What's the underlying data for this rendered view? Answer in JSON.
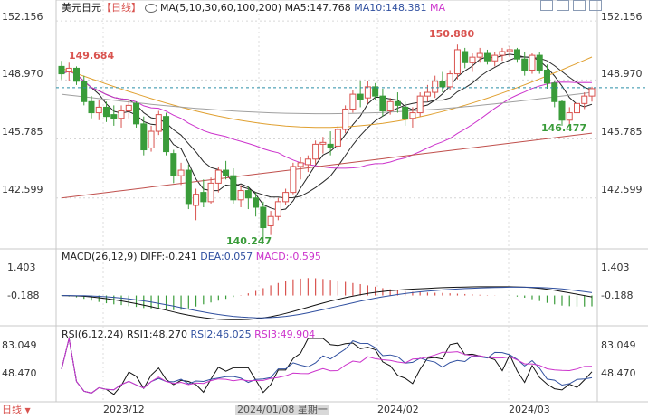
{
  "header": {
    "symbol": "美元日元",
    "period_tag": "【日线】",
    "ma_settings": "MA(5,10,30,60,100,200)",
    "ma5": "MA5:147.768",
    "ma10": "MA10:148.381",
    "ma_more": "MA"
  },
  "macd_header": {
    "settings": "MACD(26,12,9)",
    "diff": "DIFF:-0.241",
    "dea": "DEA:0.057",
    "macd": "MACD:-0.595"
  },
  "rsi_header": {
    "settings": "RSI(6,12,24)",
    "rsi1": "RSI1:48.270",
    "rsi2": "RSI2:46.025",
    "rsi3": "RSI3:49.904"
  },
  "period_button": "日线",
  "chart_data": {
    "type": "candlestick",
    "price_axis": {
      "ylim": [
        140.0,
        152.6
      ],
      "ticks": [
        "152.156",
        "148.970",
        "145.785",
        "142.599"
      ]
    },
    "last_price": 148.55,
    "annotations": {
      "high": "150.880",
      "low": "140.247",
      "start_level": "149.684",
      "recent_low": "146.477"
    },
    "x_ticks": [
      "2023/12",
      "2024/01/08 星期一",
      "2024/02",
      "2024/03"
    ],
    "candles": [
      [
        149.7,
        150.0,
        149.0,
        149.3
      ],
      [
        149.4,
        149.9,
        148.9,
        149.6
      ],
      [
        149.6,
        149.7,
        148.7,
        148.9
      ],
      [
        148.9,
        149.2,
        147.6,
        147.8
      ],
      [
        147.8,
        148.1,
        146.9,
        147.2
      ],
      [
        147.2,
        147.9,
        146.8,
        147.5
      ],
      [
        147.5,
        147.8,
        146.7,
        147.0
      ],
      [
        147.1,
        147.6,
        146.5,
        146.9
      ],
      [
        146.9,
        147.6,
        146.4,
        147.3
      ],
      [
        147.3,
        147.9,
        146.9,
        147.6
      ],
      [
        147.7,
        147.8,
        146.4,
        146.6
      ],
      [
        146.6,
        147.0,
        144.9,
        145.2
      ],
      [
        145.3,
        146.5,
        145.1,
        146.2
      ],
      [
        146.2,
        147.3,
        146.0,
        147.1
      ],
      [
        147.0,
        147.2,
        144.9,
        145.1
      ],
      [
        145.0,
        145.2,
        143.4,
        143.8
      ],
      [
        143.8,
        144.5,
        143.3,
        144.1
      ],
      [
        144.1,
        144.4,
        142.0,
        142.3
      ],
      [
        142.2,
        143.1,
        141.4,
        142.8
      ],
      [
        142.9,
        143.6,
        142.1,
        142.4
      ],
      [
        142.4,
        143.7,
        142.3,
        143.4
      ],
      [
        143.4,
        144.3,
        142.9,
        144.1
      ],
      [
        144.1,
        144.6,
        143.6,
        143.8
      ],
      [
        143.8,
        144.2,
        142.3,
        142.5
      ],
      [
        142.5,
        143.3,
        142.1,
        143.0
      ],
      [
        143.0,
        143.2,
        142.0,
        142.6
      ],
      [
        142.6,
        142.9,
        141.6,
        142.1
      ],
      [
        142.1,
        142.4,
        140.25,
        141.0
      ],
      [
        141.1,
        141.9,
        140.6,
        141.6
      ],
      [
        141.6,
        142.6,
        141.4,
        142.4
      ],
      [
        142.4,
        143.1,
        142.2,
        142.9
      ],
      [
        142.9,
        144.5,
        142.8,
        144.3
      ],
      [
        144.3,
        144.8,
        143.6,
        144.5
      ],
      [
        144.4,
        144.9,
        144.0,
        144.7
      ],
      [
        144.7,
        145.7,
        144.4,
        145.5
      ],
      [
        145.5,
        145.9,
        145.0,
        145.6
      ],
      [
        145.5,
        146.2,
        144.9,
        145.3
      ],
      [
        145.4,
        146.5,
        145.2,
        146.3
      ],
      [
        146.3,
        147.6,
        146.1,
        147.4
      ],
      [
        147.4,
        148.4,
        147.2,
        148.2
      ],
      [
        148.2,
        148.9,
        147.5,
        147.9
      ],
      [
        148.0,
        148.9,
        147.7,
        148.6
      ],
      [
        148.6,
        148.8,
        147.9,
        148.1
      ],
      [
        148.1,
        148.5,
        147.0,
        147.3
      ],
      [
        147.3,
        148.0,
        147.1,
        147.8
      ],
      [
        147.8,
        148.3,
        147.2,
        147.6
      ],
      [
        147.5,
        147.8,
        146.5,
        146.9
      ],
      [
        146.9,
        147.5,
        146.4,
        147.2
      ],
      [
        147.2,
        148.3,
        147.0,
        148.1
      ],
      [
        148.1,
        148.7,
        147.8,
        148.3
      ],
      [
        148.3,
        149.2,
        148.0,
        148.9
      ],
      [
        148.9,
        149.4,
        148.3,
        148.6
      ],
      [
        148.6,
        149.5,
        148.4,
        149.3
      ],
      [
        149.3,
        150.88,
        149.0,
        150.6
      ],
      [
        150.5,
        150.7,
        149.6,
        149.9
      ],
      [
        149.9,
        150.4,
        149.4,
        150.2
      ],
      [
        150.2,
        150.7,
        149.9,
        150.4
      ],
      [
        150.4,
        150.6,
        149.8,
        150.0
      ],
      [
        150.0,
        150.5,
        149.7,
        150.3
      ],
      [
        150.3,
        150.7,
        150.0,
        150.5
      ],
      [
        150.5,
        150.8,
        150.2,
        150.6
      ],
      [
        150.6,
        150.7,
        149.9,
        150.1
      ],
      [
        150.1,
        150.5,
        149.2,
        149.5
      ],
      [
        149.5,
        150.4,
        149.3,
        150.3
      ],
      [
        150.3,
        150.5,
        149.3,
        149.5
      ],
      [
        149.5,
        149.8,
        148.5,
        148.8
      ],
      [
        148.8,
        148.9,
        147.5,
        147.8
      ],
      [
        147.8,
        147.9,
        146.5,
        146.8
      ],
      [
        146.8,
        147.5,
        146.5,
        147.2
      ],
      [
        147.2,
        147.9,
        146.8,
        147.7
      ],
      [
        147.7,
        148.3,
        147.4,
        148.1
      ],
      [
        148.1,
        148.6,
        147.8,
        148.5
      ]
    ],
    "series_lines": [
      {
        "name": "MA5",
        "color": "#222222"
      },
      {
        "name": "MA10",
        "color": "#2a2a2a"
      },
      {
        "name": "MA30",
        "color": "#cc33cc"
      },
      {
        "name": "MA60",
        "color": "#e0a030"
      },
      {
        "name": "MA100",
        "color": "#a0a0a0"
      },
      {
        "name": "MA200",
        "color": "#c0504d"
      }
    ],
    "macd_axis": {
      "ylim": [
        -1.5,
        1.9
      ],
      "ticks": [
        "1.403",
        "-0.188"
      ]
    },
    "macd_hist": [
      -0.02,
      -0.05,
      -0.1,
      -0.18,
      -0.28,
      -0.35,
      -0.42,
      -0.48,
      -0.52,
      -0.58,
      -0.62,
      -0.68,
      -0.7,
      -0.74,
      -0.76,
      -0.8,
      -0.78,
      -0.7,
      -0.6,
      -0.48,
      -0.38,
      -0.28,
      -0.18,
      -0.08,
      0.02,
      0.12,
      0.25,
      0.4,
      0.55,
      0.68,
      0.8,
      0.88,
      0.92,
      0.95,
      0.94,
      0.9,
      0.86,
      0.8,
      0.74,
      0.68,
      0.62,
      0.55,
      0.48,
      0.4,
      0.34,
      0.28,
      0.24,
      0.2,
      0.18,
      0.16,
      0.15,
      0.14,
      0.12,
      0.1,
      0.08,
      0.06,
      0.04,
      0.02,
      0.01,
      0.0,
      -0.02,
      -0.06,
      -0.12,
      -0.2,
      -0.3,
      -0.4,
      -0.48,
      -0.55,
      -0.58,
      -0.6,
      -0.6,
      -0.59
    ],
    "rsi_axis": {
      "ylim": [
        0,
        100
      ],
      "ticks": [
        "83.049",
        "48.470"
      ]
    },
    "colors": {
      "up": "#d9534f",
      "down": "#3a9c3a",
      "dashed_last": "#2a8fa8",
      "marker_high": "#d9534f",
      "marker_low": "#3a9c3a"
    }
  }
}
